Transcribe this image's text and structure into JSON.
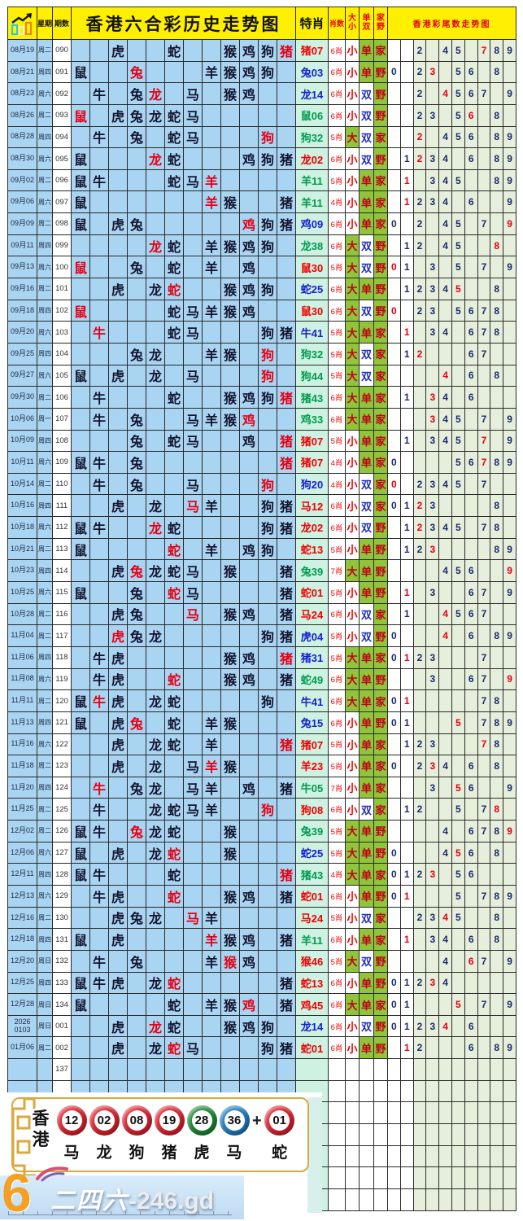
{
  "header": {
    "week": "星期",
    "period": "期数",
    "title": "香港六合彩历史走势图",
    "te": "特肖",
    "xs": "肖数",
    "dx": "大\n小",
    "ds": "单\n双",
    "jy": "家\n野",
    "tails_title": "香港彩尾数走势图"
  },
  "zodiac_order": [
    "鼠",
    "牛",
    "虎",
    "兔",
    "龙",
    "蛇",
    "马",
    "羊",
    "猴",
    "鸡",
    "狗",
    "猪"
  ],
  "rows": [
    {
      "d": "08月19",
      "w": "周二",
      "p": "090",
      "z": [
        "虎",
        "蛇",
        "猴",
        "鸡",
        "狗",
        "猪*"
      ],
      "t": "猪07",
      "c": "r",
      "x": "6肖",
      "dx": "小",
      "ds": "单",
      "jy": "家",
      "tl": [
        2,
        4,
        5,
        7,
        8,
        9
      ],
      "s": 7
    },
    {
      "d": "08月21",
      "w": "周四",
      "p": "091",
      "z": [
        "鼠",
        "兔*",
        "羊",
        "猴",
        "鸡",
        "狗"
      ],
      "t": "兔03",
      "c": "b",
      "x": "6肖",
      "dx": "小",
      "ds": "单",
      "jy": "野",
      "tl": [
        0,
        2,
        3,
        5,
        6,
        8
      ],
      "s": 3
    },
    {
      "d": "08月23",
      "w": "周六",
      "p": "092",
      "z": [
        "牛",
        "兔",
        "龙*",
        "马",
        "猴",
        "鸡"
      ],
      "t": "龙14",
      "c": "b",
      "x": "6肖",
      "dx": "小",
      "ds": "双",
      "jy": "野",
      "tl": [
        2,
        4,
        5,
        6,
        7,
        9
      ],
      "s": 4
    },
    {
      "d": "08月26",
      "w": "周二",
      "p": "093",
      "z": [
        "鼠*",
        "虎",
        "兔",
        "龙",
        "蛇",
        "马"
      ],
      "t": "鼠06",
      "c": "g",
      "x": "6肖",
      "dx": "小",
      "ds": "双",
      "jy": "野",
      "tl": [
        2,
        3,
        5,
        6,
        8
      ],
      "s": 6
    },
    {
      "d": "08月28",
      "w": "周四",
      "p": "094",
      "z": [
        "牛",
        "兔",
        "蛇",
        "马",
        "狗*"
      ],
      "t": "狗32",
      "c": "g",
      "x": "5肖",
      "dx": "大",
      "ds": "双",
      "jy": "家",
      "tl": [
        2,
        4,
        5,
        6,
        8,
        9
      ],
      "s": 2
    },
    {
      "d": "08月30",
      "w": "周六",
      "p": "095",
      "z": [
        "鼠",
        "龙*",
        "蛇",
        "鸡",
        "狗",
        "猪"
      ],
      "t": "龙02",
      "c": "r",
      "x": "6肖",
      "dx": "小",
      "ds": "双",
      "jy": "野",
      "tl": [
        1,
        2,
        3,
        4,
        6,
        8,
        9
      ],
      "s": 2
    },
    {
      "d": "09月02",
      "w": "周二",
      "p": "096",
      "z": [
        "鼠",
        "牛",
        "蛇",
        "马",
        "羊*"
      ],
      "t": "羊11",
      "c": "g",
      "x": "5肖",
      "dx": "小",
      "ds": "单",
      "jy": "家",
      "tl": [
        1,
        3,
        4,
        5,
        8,
        9
      ],
      "s": 1
    },
    {
      "d": "09月06",
      "w": "周六",
      "p": "097",
      "z": [
        "鼠",
        "羊*",
        "猴",
        "猪"
      ],
      "t": "羊11",
      "c": "g",
      "x": "4肖",
      "dx": "小",
      "ds": "单",
      "jy": "家",
      "tl": [
        1,
        2,
        3,
        4,
        6,
        9
      ],
      "s": 1
    },
    {
      "d": "09月09",
      "w": "周二",
      "p": "098",
      "z": [
        "鼠",
        "虎",
        "兔",
        "鸡*",
        "狗",
        "猪"
      ],
      "t": "鸡09",
      "c": "b",
      "x": "6肖",
      "dx": "小",
      "ds": "单",
      "jy": "家",
      "tl": [
        0,
        2,
        4,
        5,
        7,
        9
      ],
      "s": 9
    },
    {
      "d": "09月11",
      "w": "周四",
      "p": "099",
      "z": [
        "龙*",
        "蛇",
        "羊",
        "猴",
        "鸡",
        "狗"
      ],
      "t": "龙38",
      "c": "g",
      "x": "6肖",
      "dx": "大",
      "ds": "双",
      "jy": "野",
      "tl": [
        1,
        2,
        4,
        5,
        8
      ],
      "s": 8
    },
    {
      "d": "09月13",
      "w": "周六",
      "p": "100",
      "z": [
        "鼠*",
        "兔",
        "蛇",
        "羊",
        "鸡"
      ],
      "t": "鼠30",
      "c": "r",
      "x": "5肖",
      "dx": "大",
      "ds": "双",
      "jy": "野",
      "tl": [
        0,
        1,
        3,
        5,
        7,
        9
      ],
      "s": 0
    },
    {
      "d": "09月16",
      "w": "周二",
      "p": "101",
      "z": [
        "虎",
        "龙",
        "蛇*",
        "猴",
        "鸡",
        "狗"
      ],
      "t": "蛇25",
      "c": "b",
      "x": "6肖",
      "dx": "大",
      "ds": "单",
      "jy": "野",
      "tl": [
        1,
        2,
        3,
        4,
        5,
        8
      ],
      "s": 5
    },
    {
      "d": "09月18",
      "w": "周四",
      "p": "102",
      "z": [
        "鼠*",
        "蛇",
        "马",
        "羊",
        "猴",
        "鸡"
      ],
      "t": "鼠30",
      "c": "r",
      "x": "6肖",
      "dx": "大",
      "ds": "双",
      "jy": "野",
      "tl": [
        0,
        2,
        3,
        5,
        6,
        7,
        8
      ],
      "s": 0
    },
    {
      "d": "09月20",
      "w": "周六",
      "p": "103",
      "z": [
        "牛*",
        "蛇",
        "马",
        "狗",
        "猪"
      ],
      "t": "牛41",
      "c": "b",
      "x": "5肖",
      "dx": "大",
      "ds": "单",
      "jy": "家",
      "tl": [
        1,
        3,
        4,
        6,
        7,
        8
      ],
      "s": 1
    },
    {
      "d": "09月25",
      "w": "周四",
      "p": "104",
      "z": [
        "兔",
        "龙",
        "羊",
        "猴",
        "狗*"
      ],
      "t": "狗32",
      "c": "g",
      "x": "5肖",
      "dx": "大",
      "ds": "双",
      "jy": "家",
      "tl": [
        1,
        2,
        6,
        7
      ],
      "s": 2
    },
    {
      "d": "09月27",
      "w": "周六",
      "p": "105",
      "z": [
        "鼠",
        "虎",
        "龙",
        "马",
        "狗*"
      ],
      "t": "狗44",
      "c": "g",
      "x": "5肖",
      "dx": "大",
      "ds": "双",
      "jy": "家",
      "tl": [
        4,
        6,
        8
      ],
      "s": 4
    },
    {
      "d": "09月30",
      "w": "周二",
      "p": "106",
      "z": [
        "牛",
        "蛇",
        "猴",
        "鸡",
        "狗",
        "猪*"
      ],
      "t": "猪43",
      "c": "g",
      "x": "6肖",
      "dx": "大",
      "ds": "单",
      "jy": "家",
      "tl": [
        1,
        3,
        4,
        6
      ],
      "s": 3
    },
    {
      "d": "10月06",
      "w": "周一",
      "p": "107",
      "z": [
        "牛",
        "兔",
        "马",
        "羊",
        "猴",
        "鸡*"
      ],
      "t": "鸡33",
      "c": "g",
      "x": "6肖",
      "dx": "大",
      "ds": "单",
      "jy": "家",
      "tl": [
        3,
        4,
        5,
        7,
        9
      ],
      "s": 3
    },
    {
      "d": "10月09",
      "w": "周四",
      "p": "108",
      "z": [
        "兔",
        "蛇",
        "马",
        "鸡",
        "猪*"
      ],
      "t": "猪07",
      "c": "r",
      "x": "5肖",
      "dx": "小",
      "ds": "单",
      "jy": "家",
      "tl": [
        1,
        3,
        4,
        5,
        7,
        9
      ],
      "s": 7
    },
    {
      "d": "10月11",
      "w": "周六",
      "p": "109",
      "z": [
        "鼠",
        "牛",
        "兔",
        "猪*"
      ],
      "t": "猪07",
      "c": "r",
      "x": "4肖",
      "dx": "小",
      "ds": "单",
      "jy": "家",
      "tl": [
        0,
        5,
        6,
        7,
        8,
        9
      ],
      "s": 7
    },
    {
      "d": "10月14",
      "w": "周二",
      "p": "110",
      "z": [
        "牛",
        "兔",
        "马",
        "狗*"
      ],
      "t": "狗20",
      "c": "b",
      "x": "4肖",
      "dx": "小",
      "ds": "双",
      "jy": "家",
      "tl": [
        0,
        2,
        3,
        4,
        5,
        7
      ],
      "s": 0
    },
    {
      "d": "10月16",
      "w": "周四",
      "p": "111",
      "z": [
        "虎",
        "龙",
        "马*",
        "羊",
        "狗",
        "猪"
      ],
      "t": "马12",
      "c": "r",
      "x": "6肖",
      "dx": "小",
      "ds": "双",
      "jy": "家",
      "tl": [
        0,
        1,
        2,
        3,
        8
      ],
      "s": 2
    },
    {
      "d": "10月18",
      "w": "周六",
      "p": "112",
      "z": [
        "鼠",
        "牛",
        "龙*",
        "蛇",
        "狗",
        "猪"
      ],
      "t": "龙02",
      "c": "r",
      "x": "6肖",
      "dx": "小",
      "ds": "双",
      "jy": "野",
      "tl": [
        1,
        2,
        3,
        4,
        5,
        7,
        8
      ],
      "s": 2
    },
    {
      "d": "10月21",
      "w": "周二",
      "p": "113",
      "z": [
        "鼠",
        "蛇*",
        "羊",
        "鸡",
        "狗"
      ],
      "t": "蛇13",
      "c": "r",
      "x": "5肖",
      "dx": "小",
      "ds": "单",
      "jy": "野",
      "tl": [
        1,
        2,
        3,
        8,
        9
      ],
      "s": 3
    },
    {
      "d": "10月23",
      "w": "周四",
      "p": "114",
      "z": [
        "虎",
        "兔*",
        "龙",
        "蛇",
        "马",
        "猴",
        "猪"
      ],
      "t": "兔39",
      "c": "g",
      "x": "7肖",
      "dx": "大",
      "ds": "单",
      "jy": "野",
      "tl": [
        4,
        5,
        6,
        9
      ],
      "s": 9
    },
    {
      "d": "10月25",
      "w": "周六",
      "p": "115",
      "z": [
        "鼠",
        "兔",
        "蛇*",
        "马",
        "猪"
      ],
      "t": "蛇01",
      "c": "r",
      "x": "5肖",
      "dx": "小",
      "ds": "单",
      "jy": "野",
      "tl": [
        1,
        3,
        6,
        7,
        9
      ],
      "s": 1
    },
    {
      "d": "10月28",
      "w": "周二",
      "p": "116",
      "z": [
        "虎",
        "兔",
        "马*",
        "猴",
        "鸡",
        "猪"
      ],
      "t": "马24",
      "c": "r",
      "x": "6肖",
      "dx": "小",
      "ds": "双",
      "jy": "家",
      "tl": [
        1,
        4,
        5,
        6,
        7
      ],
      "s": 4
    },
    {
      "d": "11月04",
      "w": "周二",
      "p": "117",
      "z": [
        "虎*",
        "兔",
        "龙",
        "狗",
        "猪"
      ],
      "t": "虎04",
      "c": "b",
      "x": "5肖",
      "dx": "小",
      "ds": "双",
      "jy": "野",
      "tl": [
        0,
        4,
        6,
        8,
        9
      ],
      "s": 4
    },
    {
      "d": "11月06",
      "w": "周四",
      "p": "118",
      "z": [
        "牛",
        "虎",
        "猴",
        "鸡",
        "猪*"
      ],
      "t": "猪31",
      "c": "b",
      "x": "5肖",
      "dx": "大",
      "ds": "单",
      "jy": "家",
      "tl": [
        0,
        1,
        2,
        3,
        7
      ],
      "s": 1
    },
    {
      "d": "11月08",
      "w": "周六",
      "p": "119",
      "z": [
        "牛",
        "虎",
        "蛇*",
        "猴",
        "鸡",
        "猪"
      ],
      "t": "蛇49",
      "c": "g",
      "x": "6肖",
      "dx": "大",
      "ds": "单",
      "jy": "野",
      "tl": [
        3,
        6,
        7,
        9
      ],
      "s": 9
    },
    {
      "d": "11月11",
      "w": "周二",
      "p": "120",
      "z": [
        "鼠",
        "牛*",
        "虎",
        "龙",
        "蛇",
        "狗"
      ],
      "t": "牛41",
      "c": "b",
      "x": "6肖",
      "dx": "大",
      "ds": "单",
      "jy": "家",
      "tl": [
        0,
        1,
        7,
        8
      ],
      "s": 1
    },
    {
      "d": "11月13",
      "w": "周四",
      "p": "121",
      "z": [
        "鼠",
        "虎",
        "兔*",
        "蛇",
        "羊",
        "猴"
      ],
      "t": "兔15",
      "c": "b",
      "x": "6肖",
      "dx": "小",
      "ds": "单",
      "jy": "野",
      "tl": [
        0,
        1,
        5,
        7,
        8,
        9
      ],
      "s": 5
    },
    {
      "d": "11月16",
      "w": "周六",
      "p": "122",
      "z": [
        "虎",
        "龙",
        "蛇",
        "羊",
        "猪*"
      ],
      "t": "猪07",
      "c": "r",
      "x": "5肖",
      "dx": "小",
      "ds": "单",
      "jy": "家",
      "tl": [
        1,
        2,
        3,
        7,
        8
      ],
      "s": 7
    },
    {
      "d": "11月18",
      "w": "周二",
      "p": "123",
      "z": [
        "虎",
        "龙",
        "马",
        "羊*",
        "猴"
      ],
      "t": "羊23",
      "c": "r",
      "x": "5肖",
      "dx": "小",
      "ds": "单",
      "jy": "家",
      "tl": [
        0,
        2,
        3,
        4,
        6,
        8
      ],
      "s": 3
    },
    {
      "d": "11月20",
      "w": "周四",
      "p": "124",
      "z": [
        "牛*",
        "兔",
        "龙",
        "马",
        "羊",
        "鸡",
        "猪"
      ],
      "t": "牛05",
      "c": "g",
      "x": "7肖",
      "dx": "小",
      "ds": "单",
      "jy": "家",
      "tl": [
        3,
        5,
        6,
        9
      ],
      "s": 5
    },
    {
      "d": "11月25",
      "w": "周二",
      "p": "125",
      "z": [
        "牛",
        "龙",
        "蛇",
        "马",
        "羊",
        "狗*"
      ],
      "t": "狗08",
      "c": "r",
      "x": "6肖",
      "dx": "小",
      "ds": "双",
      "jy": "家",
      "tl": [
        1,
        2,
        5,
        7,
        8
      ],
      "s": 8
    },
    {
      "d": "12月02",
      "w": "周二",
      "p": "126",
      "z": [
        "鼠",
        "牛",
        "兔*",
        "龙",
        "蛇",
        "猴"
      ],
      "t": "兔39",
      "c": "g",
      "x": "5肖",
      "dx": "大",
      "ds": "单",
      "jy": "野",
      "tl": [
        4,
        6,
        7,
        8,
        9
      ],
      "s": 9
    },
    {
      "d": "12月06",
      "w": "周六",
      "p": "127",
      "z": [
        "鼠",
        "虎",
        "龙",
        "蛇*",
        "猴"
      ],
      "t": "蛇25",
      "c": "b",
      "x": "5肖",
      "dx": "大",
      "ds": "单",
      "jy": "野",
      "tl": [
        0,
        4,
        5,
        6,
        8
      ],
      "s": 5
    },
    {
      "d": "12月11",
      "w": "周四",
      "p": "128",
      "z": [
        "鼠",
        "牛",
        "蛇",
        "猪*"
      ],
      "t": "猪43",
      "c": "g",
      "x": "4肖",
      "dx": "大",
      "ds": "单",
      "jy": "家",
      "tl": [
        0,
        1,
        2,
        3,
        5,
        6
      ],
      "s": 3
    },
    {
      "d": "12月13",
      "w": "周六",
      "p": "129",
      "z": [
        "牛",
        "虎",
        "蛇*",
        "猴",
        "鸡",
        "猪"
      ],
      "t": "蛇01",
      "c": "r",
      "x": "6肖",
      "dx": "小",
      "ds": "单",
      "jy": "野",
      "tl": [
        0,
        1,
        5,
        7,
        8,
        9
      ],
      "s": 1
    },
    {
      "d": "12月16",
      "w": "周二",
      "p": "130",
      "z": [
        "虎",
        "兔",
        "龙",
        "马*",
        "羊"
      ],
      "t": "马24",
      "c": "r",
      "x": "5肖",
      "dx": "小",
      "ds": "双",
      "jy": "家",
      "tl": [
        2,
        3,
        4,
        5,
        8
      ],
      "s": 4
    },
    {
      "d": "12月18",
      "w": "周四",
      "p": "131",
      "z": [
        "鼠",
        "虎",
        "羊*",
        "猴",
        "鸡",
        "猪"
      ],
      "t": "羊11",
      "c": "g",
      "x": "6肖",
      "dx": "小",
      "ds": "单",
      "jy": "家",
      "tl": [
        1,
        3,
        4,
        6,
        8
      ],
      "s": 1
    },
    {
      "d": "12月20",
      "w": "周日",
      "p": "132",
      "z": [
        "牛",
        "兔",
        "羊",
        "猴*",
        "鸡"
      ],
      "t": "猴46",
      "c": "r",
      "x": "5肖",
      "dx": "大",
      "ds": "双",
      "jy": "野",
      "tl": [
        4,
        6,
        7,
        9
      ],
      "s": 6
    },
    {
      "d": "12月25",
      "w": "周四",
      "p": "133",
      "z": [
        "鼠",
        "牛",
        "虎",
        "龙",
        "蛇*",
        "猪"
      ],
      "t": "蛇13",
      "c": "r",
      "x": "6肖",
      "dx": "小",
      "ds": "单",
      "jy": "野",
      "tl": [
        0,
        1,
        2,
        3,
        4
      ],
      "s": 3
    },
    {
      "d": "12月28",
      "w": "周日",
      "p": "134",
      "z": [
        "鼠",
        "蛇",
        "羊",
        "猴",
        "鸡*",
        "猪"
      ],
      "t": "鸡45",
      "c": "r",
      "x": "6肖",
      "dx": "大",
      "ds": "单",
      "jy": "家",
      "tl": [
        0,
        1,
        5,
        7,
        9
      ],
      "s": 5
    },
    {
      "d": "2026\n0103",
      "w": "周日",
      "p": "001",
      "z": [
        "虎",
        "龙*",
        "蛇",
        "猴",
        "鸡",
        "狗"
      ],
      "t": "龙14",
      "c": "b",
      "x": "6肖",
      "dx": "小",
      "ds": "双",
      "jy": "野",
      "tl": [
        0,
        1,
        2,
        3,
        4,
        6
      ],
      "s": 4
    },
    {
      "d": "01月06",
      "w": "周二",
      "p": "002",
      "z": [
        "虎",
        "龙",
        "蛇*",
        "马",
        "狗",
        "猪"
      ],
      "t": "蛇01",
      "c": "r",
      "x": "6肖",
      "dx": "小",
      "ds": "单",
      "jy": "野",
      "tl": [
        1,
        2,
        6,
        8,
        9
      ],
      "s": 1
    },
    {
      "p": "137"
    },
    {},
    {},
    {},
    {},
    {},
    {}
  ],
  "footer": {
    "region": "香\n港",
    "plus": "+",
    "balls": [
      {
        "n": "12",
        "c": "red",
        "z": "马"
      },
      {
        "n": "02",
        "c": "red",
        "z": "龙"
      },
      {
        "n": "08",
        "c": "red",
        "z": "狗"
      },
      {
        "n": "19",
        "c": "red",
        "z": "猪"
      },
      {
        "n": "28",
        "c": "green",
        "z": "虎"
      },
      {
        "n": "36",
        "c": "blue",
        "z": "马"
      },
      {
        "n": "01",
        "c": "red",
        "z": "蛇"
      }
    ]
  },
  "watermark": {
    "big": "6",
    "brand": "二四六",
    "domain": "-246.gd"
  },
  "colors": {
    "header_bg": "#ffef00",
    "zodiac_bg": "#a9d4f2",
    "te_bg": "#cdf2e2",
    "tail_bg": "#e6efdb",
    "grid_green": "#8fc43b",
    "special": "#e60012",
    "te_red": "#f00000",
    "te_blue": "#1520d0",
    "te_green": "#009a4e",
    "ball_red": "#dd2430",
    "ball_green": "#1e8a35",
    "ball_blue": "#1f7ec2"
  }
}
